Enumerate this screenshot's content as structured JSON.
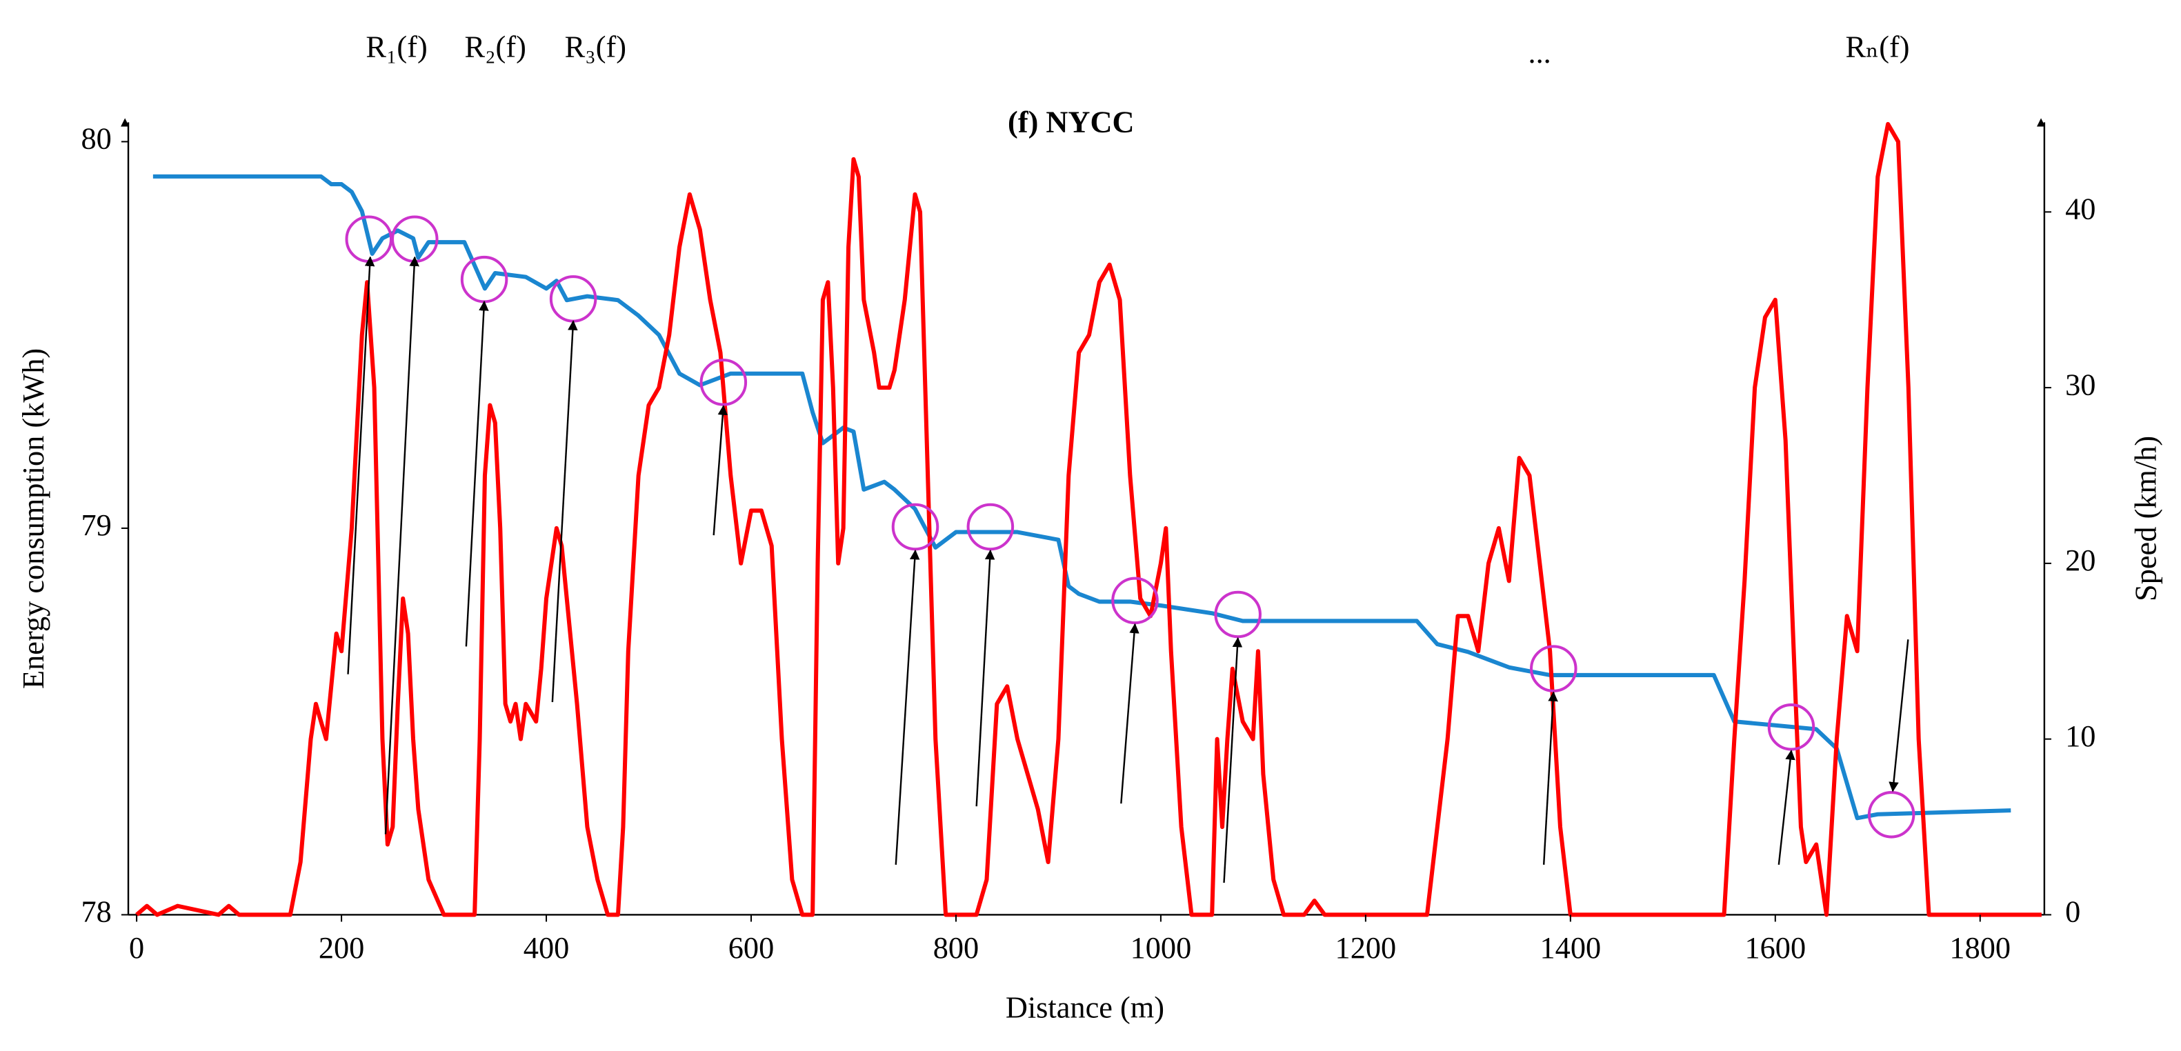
{
  "chart_data": {
    "type": "line",
    "title": "(f) NYCC",
    "annotations": [
      "R₁(f)",
      "R₂(f)",
      "R₃(f)",
      "...",
      "Rₙ(f)"
    ],
    "x_label": "Distance (m)",
    "y_label": "Energy consumption (kWh)",
    "y2_label": "Speed (km/h)",
    "xlim": [
      0,
      1860
    ],
    "xticks": [
      0,
      200,
      400,
      600,
      800,
      1000,
      1200,
      1400,
      1600,
      1800
    ],
    "ylim": [
      78,
      80.05
    ],
    "yticks": [
      78,
      79,
      80
    ],
    "y2lim": [
      0,
      45.1
    ],
    "y2ticks": [
      0,
      10,
      20,
      30,
      40
    ],
    "y_color": "#1a86d0",
    "y2_color": "#ff0000",
    "series": [
      {
        "name": "Energy consumption",
        "color": "#1a86d0",
        "x": [
          16,
          180,
          190,
          200,
          210,
          220,
          230,
          240,
          255,
          270,
          275,
          285,
          320,
          330,
          340,
          350,
          380,
          400,
          410,
          420,
          440,
          470,
          490,
          510,
          530,
          550,
          580,
          600,
          650,
          660,
          670,
          690,
          700,
          710,
          730,
          740,
          760,
          780,
          800,
          860,
          900,
          910,
          920,
          940,
          970,
          1000,
          1050,
          1080,
          1100,
          1250,
          1270,
          1300,
          1340,
          1380,
          1540,
          1560,
          1600,
          1640,
          1660,
          1680,
          1700,
          1830
        ],
        "values": [
          79.91,
          79.91,
          79.89,
          79.89,
          79.87,
          79.82,
          79.71,
          79.75,
          79.77,
          79.75,
          79.7,
          79.74,
          79.74,
          79.68,
          79.62,
          79.66,
          79.65,
          79.62,
          79.64,
          79.59,
          79.6,
          79.59,
          79.55,
          79.5,
          79.4,
          79.37,
          79.4,
          79.4,
          79.4,
          79.3,
          79.22,
          79.26,
          79.25,
          79.1,
          79.12,
          79.1,
          79.05,
          78.95,
          78.99,
          78.99,
          78.97,
          78.85,
          78.83,
          78.81,
          78.81,
          78.8,
          78.78,
          78.76,
          78.76,
          78.76,
          78.7,
          78.68,
          78.64,
          78.62,
          78.62,
          78.5,
          78.49,
          78.48,
          78.43,
          78.25,
          78.26,
          78.27
        ]
      },
      {
        "name": "Speed",
        "color": "#ff0000",
        "axis": "y2",
        "x": [
          0,
          10,
          20,
          40,
          80,
          90,
          100,
          150,
          160,
          170,
          175,
          185,
          195,
          200,
          210,
          220,
          225,
          232,
          240,
          245,
          250,
          255,
          260,
          265,
          270,
          275,
          285,
          300,
          330,
          335,
          340,
          345,
          350,
          355,
          360,
          365,
          370,
          375,
          380,
          390,
          395,
          400,
          410,
          415,
          420,
          430,
          440,
          450,
          460,
          470,
          475,
          480,
          490,
          500,
          510,
          520,
          530,
          540,
          550,
          560,
          570,
          580,
          590,
          600,
          610,
          620,
          630,
          640,
          650,
          660,
          665,
          670,
          675,
          680,
          685,
          690,
          695,
          700,
          705,
          710,
          720,
          725,
          735,
          740,
          750,
          760,
          765,
          770,
          780,
          790,
          820,
          830,
          840,
          850,
          860,
          870,
          880,
          890,
          900,
          910,
          920,
          930,
          940,
          950,
          960,
          970,
          980,
          990,
          1000,
          1005,
          1010,
          1020,
          1030,
          1050,
          1055,
          1060,
          1065,
          1070,
          1080,
          1090,
          1095,
          1100,
          1110,
          1120,
          1140,
          1150,
          1160,
          1260,
          1270,
          1280,
          1290,
          1300,
          1310,
          1320,
          1330,
          1340,
          1350,
          1360,
          1370,
          1380,
          1390,
          1400,
          1550,
          1560,
          1570,
          1580,
          1590,
          1600,
          1610,
          1620,
          1625,
          1630,
          1640,
          1650,
          1660,
          1670,
          1680,
          1690,
          1700,
          1710,
          1720,
          1730,
          1740,
          1750,
          1860
        ],
        "values": [
          0,
          0.5,
          0,
          0.5,
          0,
          0.5,
          0,
          0,
          3,
          10,
          12,
          10,
          16,
          15,
          22,
          33,
          36,
          30,
          10,
          4,
          5,
          12,
          18,
          16,
          10,
          6,
          2,
          0,
          0,
          10,
          25,
          29,
          28,
          22,
          12,
          11,
          12,
          10,
          12,
          11,
          14,
          18,
          22,
          21,
          18,
          12,
          5,
          2,
          0,
          0,
          5,
          15,
          25,
          29,
          30,
          33,
          38,
          41,
          39,
          35,
          32,
          25,
          20,
          23,
          23,
          21,
          10,
          2,
          0,
          0,
          20,
          35,
          36,
          30,
          20,
          22,
          38,
          43,
          42,
          35,
          32,
          30,
          30,
          31,
          35,
          41,
          40,
          30,
          10,
          0,
          0,
          2,
          12,
          13,
          10,
          8,
          6,
          3,
          10,
          25,
          32,
          33,
          36,
          37,
          35,
          25,
          18,
          17,
          20,
          22,
          15,
          5,
          0,
          0,
          10,
          5,
          10,
          14,
          11,
          10,
          15,
          8,
          2,
          0,
          0,
          0.8,
          0,
          0,
          5,
          10,
          17,
          17,
          15,
          20,
          22,
          19,
          26,
          25,
          20,
          15,
          5,
          0,
          0,
          10,
          19,
          30,
          34,
          35,
          27,
          12,
          5,
          3,
          4,
          0,
          10,
          17,
          15,
          30,
          42,
          45,
          44,
          30,
          10,
          0,
          0
        ]
      }
    ]
  }
}
